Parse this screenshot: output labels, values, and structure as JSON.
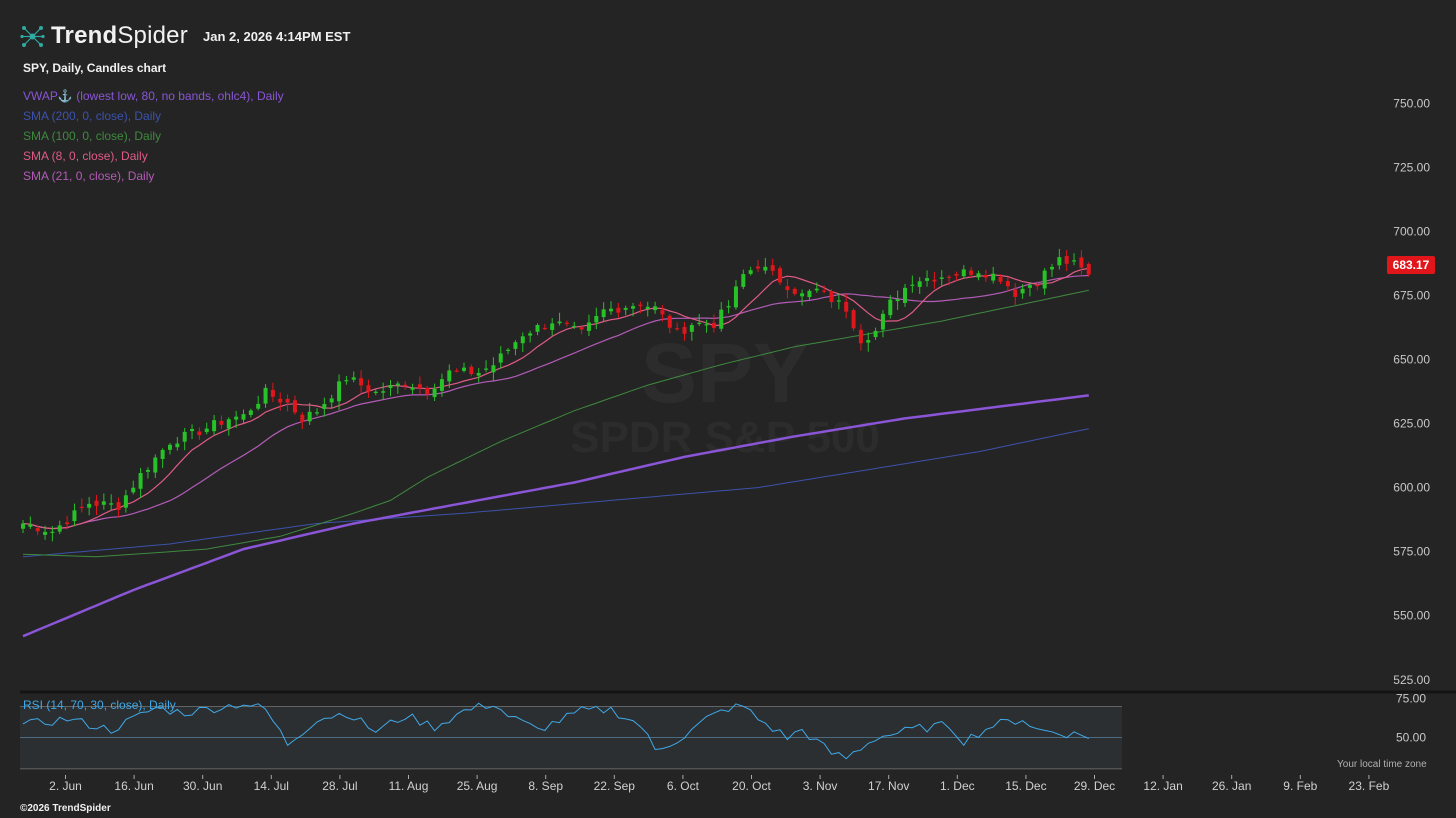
{
  "brand": {
    "name_bold": "Trend",
    "name_light": "Spider"
  },
  "timestamp": "Jan 2, 2026 4:14PM EST",
  "chart_title": "SPY, Daily, Candles chart",
  "watermark": {
    "symbol": "SPY",
    "name": "SPDR S&P 500"
  },
  "legend": [
    {
      "label": "VWAP",
      "anchor": "⚓",
      "rest": " (lowest low, 80, no bands, ohlc4), Daily",
      "color": "#8a55d6"
    },
    {
      "label": "SMA (200, 0, close), Daily",
      "color": "#3c52ad"
    },
    {
      "label": "SMA (100, 0, close), Daily",
      "color": "#3f8a3f"
    },
    {
      "label": "SMA (8, 0, close), Daily",
      "color": "#e05b86"
    },
    {
      "label": "SMA (21, 0, close), Daily",
      "color": "#b35bb7"
    }
  ],
  "last_price": "683.17",
  "rsi_label": "RSI (14, 70, 30, close), Daily",
  "timezone_note": "Your local time zone",
  "copyright": "©2026 TrendSpider",
  "colors": {
    "up": "#27c227",
    "down": "#e0161b",
    "rsi": "#3ea9e8",
    "background": "#242424"
  },
  "chart_data": {
    "type": "candlestick",
    "price_axis": {
      "ticks": [
        "750.00",
        "725.00",
        "700.00",
        "675.00",
        "650.00",
        "625.00",
        "600.00",
        "575.00",
        "550.00",
        "525.00"
      ],
      "range": [
        521,
        763
      ]
    },
    "rsi_axis": {
      "ticks": [
        "75.00",
        "50.00"
      ],
      "range": [
        28,
        78
      ],
      "bands": [
        70,
        30
      ]
    },
    "x_labels": [
      "2. Jun",
      "16. Jun",
      "30. Jun",
      "14. Jul",
      "28. Jul",
      "11. Aug",
      "25. Aug",
      "8. Sep",
      "22. Sep",
      "6. Oct",
      "20. Oct",
      "3. Nov",
      "17. Nov",
      "1. Dec",
      "15. Dec",
      "29. Dec",
      "12. Jan",
      "26. Jan",
      "9. Feb",
      "23. Feb"
    ],
    "close_anchors": [
      [
        0,
        586
      ],
      [
        4,
        583
      ],
      [
        9,
        594
      ],
      [
        13,
        593
      ],
      [
        16,
        605
      ],
      [
        20,
        618
      ],
      [
        24,
        622
      ],
      [
        28,
        627
      ],
      [
        30,
        628
      ],
      [
        33,
        637
      ],
      [
        36,
        633
      ],
      [
        38,
        627
      ],
      [
        40,
        630
      ],
      [
        44,
        643
      ],
      [
        48,
        637
      ],
      [
        52,
        641
      ],
      [
        55,
        638
      ],
      [
        58,
        645
      ],
      [
        62,
        645
      ],
      [
        64,
        648
      ],
      [
        68,
        660
      ],
      [
        72,
        665
      ],
      [
        76,
        660
      ],
      [
        79,
        669
      ],
      [
        84,
        672
      ],
      [
        86,
        670
      ],
      [
        89,
        660
      ],
      [
        91,
        664
      ],
      [
        94,
        664
      ],
      [
        96,
        671
      ],
      [
        98,
        683
      ],
      [
        100,
        687
      ],
      [
        103,
        681
      ],
      [
        106,
        675
      ],
      [
        108,
        677
      ],
      [
        112,
        670
      ],
      [
        114,
        658
      ],
      [
        116,
        661
      ],
      [
        118,
        672
      ],
      [
        121,
        681
      ],
      [
        126,
        683
      ],
      [
        130,
        685
      ],
      [
        133,
        682
      ],
      [
        135,
        676
      ],
      [
        138,
        681
      ],
      [
        141,
        689
      ],
      [
        143,
        687
      ],
      [
        145,
        683
      ]
    ],
    "sma100_anchors": [
      [
        0,
        574
      ],
      [
        10,
        573
      ],
      [
        25,
        576
      ],
      [
        35,
        581
      ],
      [
        45,
        590
      ],
      [
        50,
        595
      ],
      [
        55,
        604
      ],
      [
        65,
        618
      ],
      [
        75,
        630
      ],
      [
        85,
        640
      ],
      [
        95,
        648
      ],
      [
        105,
        655
      ],
      [
        115,
        660
      ],
      [
        125,
        665
      ],
      [
        135,
        671
      ],
      [
        145,
        677
      ]
    ],
    "sma200_anchors": [
      [
        0,
        573
      ],
      [
        20,
        578
      ],
      [
        40,
        586
      ],
      [
        60,
        590
      ],
      [
        80,
        595
      ],
      [
        100,
        600
      ],
      [
        115,
        607
      ],
      [
        130,
        614
      ],
      [
        145,
        623
      ]
    ],
    "vwap_anchors": [
      [
        0,
        542
      ],
      [
        15,
        560
      ],
      [
        30,
        576
      ],
      [
        45,
        586
      ],
      [
        60,
        594
      ],
      [
        75,
        602
      ],
      [
        90,
        612
      ],
      [
        105,
        620
      ],
      [
        120,
        627
      ],
      [
        145,
        636
      ]
    ],
    "rsi_anchors": [
      [
        0,
        58
      ],
      [
        6,
        62
      ],
      [
        12,
        55
      ],
      [
        18,
        69
      ],
      [
        22,
        66
      ],
      [
        30,
        72
      ],
      [
        33,
        68
      ],
      [
        36,
        46
      ],
      [
        40,
        62
      ],
      [
        44,
        66
      ],
      [
        48,
        54
      ],
      [
        52,
        64
      ],
      [
        56,
        57
      ],
      [
        60,
        67
      ],
      [
        64,
        72
      ],
      [
        66,
        64
      ],
      [
        70,
        55
      ],
      [
        76,
        67
      ],
      [
        80,
        68
      ],
      [
        84,
        58
      ],
      [
        86,
        42
      ],
      [
        90,
        51
      ],
      [
        93,
        62
      ],
      [
        96,
        69
      ],
      [
        98,
        70
      ],
      [
        100,
        62
      ],
      [
        104,
        50
      ],
      [
        106,
        55
      ],
      [
        110,
        40
      ],
      [
        112,
        37
      ],
      [
        116,
        50
      ],
      [
        122,
        56
      ],
      [
        126,
        58
      ],
      [
        128,
        48
      ],
      [
        132,
        58
      ],
      [
        136,
        62
      ],
      [
        138,
        55
      ],
      [
        145,
        51
      ]
    ]
  }
}
